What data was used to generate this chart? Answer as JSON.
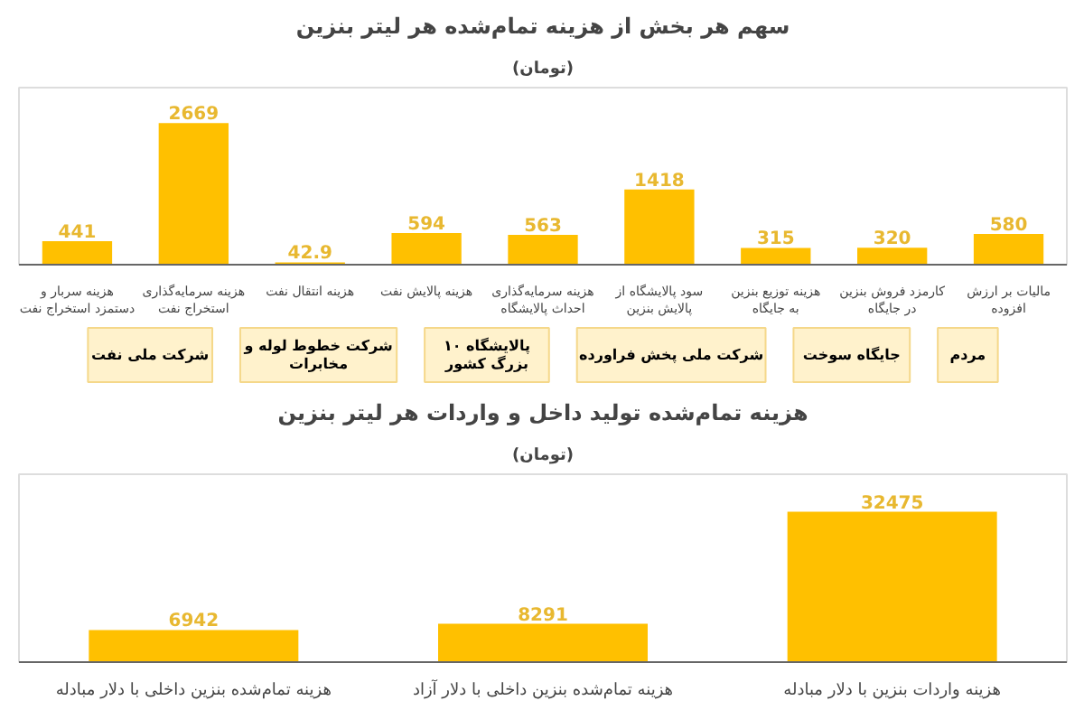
{
  "chart_data": [
    {
      "type": "bar",
      "title": "سهم هر بخش از هزینه تمام‌شده هر لیتر بنزین",
      "subtitle": "(تومان)",
      "categories": [
        "هزینه سربار و دستمزد استخراج نفت",
        "هزینه سرمایه‌گذاری استخراج نفت",
        "هزینه انتقال نفت",
        "هزینه پالایش نفت",
        "هزینه سرمایه‌گذاری احداث پالایشگاه",
        "سود پالایشگاه از پالایش بنزین",
        "هزینه توزیع بنزین به جایگاه",
        "کارمزد فروش بنزین در جایگاه",
        "مالیات بر ارزش افزوده"
      ],
      "values": [
        441,
        2669,
        42.9,
        594,
        563,
        1418,
        315,
        320,
        580
      ],
      "color": "#ffc000",
      "data_labels": true,
      "grid": false
    },
    {
      "type": "other",
      "annotations": [
        "شرکت ملی نفت",
        "شرکت خطوط لوله و مخابرات",
        "۱۰ پالایشگاه بزرگ کشور",
        "شرکت ملی پخش فراورده",
        "جایگاه سوخت",
        "مردم"
      ]
    },
    {
      "type": "bar",
      "title": "هزینه تمام‌شده تولید داخل و واردات هر لیتر بنزین",
      "subtitle": "(تومان)",
      "categories": [
        "هزینه تمام‌شده بنزین داخلی با دلار مبادله",
        "هزینه تمام‌شده بنزین داخلی با دلار آزاد",
        "هزینه واردات بنزین با دلار مبادله"
      ],
      "values": [
        6942,
        8291,
        32475
      ],
      "color": "#ffc000",
      "data_labels": true,
      "grid": false
    }
  ]
}
